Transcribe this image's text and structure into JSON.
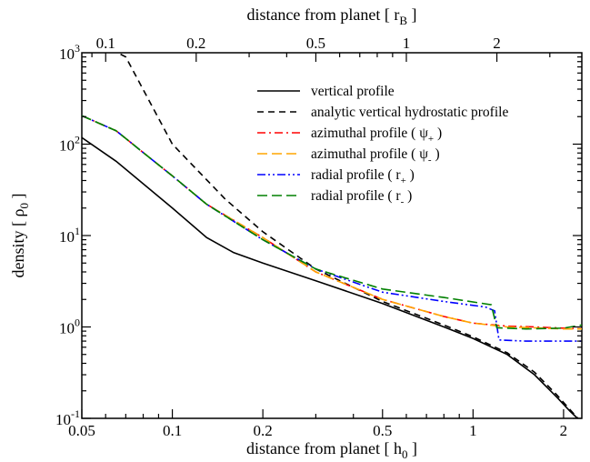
{
  "chart_data": {
    "type": "line",
    "xlabel": {
      "text": "distance from planet [ h",
      "sub": "0",
      "close": " ]"
    },
    "x2label": {
      "text": "distance from planet [ r",
      "sub": "B",
      "close": " ]"
    },
    "ylabel": {
      "text": "density [ ρ",
      "sub": "0",
      "close": " ]"
    },
    "xscale": "log",
    "yscale": "log",
    "xlim": [
      0.05,
      2.3
    ],
    "ylim": [
      0.1,
      1000
    ],
    "x2lim": [
      0.0833,
      3.833
    ],
    "x_ticks": [
      {
        "value": 0.05,
        "label": "0.05"
      },
      {
        "value": 0.1,
        "label": "0.1"
      },
      {
        "value": 0.2,
        "label": "0.2"
      },
      {
        "value": 0.5,
        "label": "0.5"
      },
      {
        "value": 1,
        "label": "1"
      },
      {
        "value": 2,
        "label": "2"
      }
    ],
    "x2_ticks": [
      {
        "value": 0.1,
        "label": "0.1"
      },
      {
        "value": 0.2,
        "label": "0.2"
      },
      {
        "value": 0.5,
        "label": "0.5"
      },
      {
        "value": 1,
        "label": "1"
      },
      {
        "value": 2,
        "label": "2"
      }
    ],
    "y_ticks": [
      {
        "value": 0.1,
        "base": "10",
        "exp": "-1"
      },
      {
        "value": 1,
        "base": "10",
        "exp": "0"
      },
      {
        "value": 10,
        "base": "10",
        "exp": "1"
      },
      {
        "value": 100,
        "base": "10",
        "exp": "2"
      },
      {
        "value": 1000,
        "base": "10",
        "exp": "3"
      }
    ],
    "grid": false,
    "legend_position": "top-right",
    "series": [
      {
        "name": "vertical profile",
        "name_sub": "",
        "name_close": "",
        "color": "#000000",
        "dash": "solid",
        "x": [
          0.05,
          0.065,
          0.1,
          0.13,
          0.16,
          0.2,
          0.3,
          0.5,
          0.8,
          1.0,
          1.3,
          1.6,
          1.9,
          2.1,
          2.3
        ],
        "y": [
          118,
          65,
          20,
          9.5,
          6.5,
          5,
          3.2,
          1.8,
          1.0,
          0.75,
          0.5,
          0.3,
          0.17,
          0.12,
          0.09
        ]
      },
      {
        "name": "analytic vertical hydrostatic profile",
        "name_sub": "",
        "name_close": "",
        "color": "#000000",
        "dash": "dashed",
        "x": [
          0.05,
          0.07,
          0.1,
          0.15,
          0.2,
          0.3,
          0.5,
          0.8,
          1.0,
          1.3,
          1.6,
          1.9,
          2.1,
          2.3
        ],
        "y": [
          1600,
          900,
          100,
          25,
          11,
          4.3,
          1.9,
          1.05,
          0.78,
          0.52,
          0.32,
          0.18,
          0.125,
          0.09
        ]
      },
      {
        "name": "azimuthal profile ( ψ",
        "name_sub": "+",
        "name_close": " )",
        "color": "#ff0000",
        "dash": "dashdot",
        "x": [
          0.05,
          0.065,
          0.1,
          0.13,
          0.2,
          0.3,
          0.5,
          0.8,
          1.0,
          1.3,
          1.6,
          2.0,
          2.3
        ],
        "y": [
          205,
          140,
          45,
          22,
          9.5,
          4,
          2.0,
          1.3,
          1.1,
          1.02,
          1.0,
          0.97,
          0.95
        ]
      },
      {
        "name": "azimuthal profile ( ψ",
        "name_sub": "-",
        "name_close": " )",
        "color": "#ffa500",
        "dash": "longdash",
        "x": [
          0.05,
          0.065,
          0.1,
          0.13,
          0.2,
          0.3,
          0.5,
          0.8,
          1.0,
          1.3,
          1.6,
          2.0,
          2.3
        ],
        "y": [
          205,
          140,
          45,
          22,
          9.5,
          4,
          2.0,
          1.3,
          1.1,
          1.0,
          0.98,
          0.95,
          0.95
        ]
      },
      {
        "name": "radial profile ( r",
        "name_sub": "+",
        "name_close": " )",
        "color": "#0000ff",
        "dash": "dashdotdot",
        "x": [
          0.05,
          0.065,
          0.1,
          0.13,
          0.2,
          0.3,
          0.5,
          0.8,
          1.1,
          1.18,
          1.22,
          1.5,
          2.0,
          2.3
        ],
        "y": [
          205,
          140,
          45,
          22,
          9,
          4.3,
          2.4,
          1.9,
          1.65,
          1.5,
          0.72,
          0.7,
          0.7,
          0.7
        ]
      },
      {
        "name": "radial profile ( r",
        "name_sub": "-",
        "name_close": " )",
        "color": "#008000",
        "dash": "longdash",
        "x": [
          0.05,
          0.065,
          0.1,
          0.13,
          0.2,
          0.3,
          0.5,
          0.8,
          1.15,
          1.2,
          1.5,
          2.0,
          2.3
        ],
        "y": [
          205,
          140,
          45,
          22,
          9,
          4.3,
          2.6,
          2.1,
          1.75,
          0.98,
          0.95,
          0.97,
          1.05
        ]
      }
    ]
  }
}
